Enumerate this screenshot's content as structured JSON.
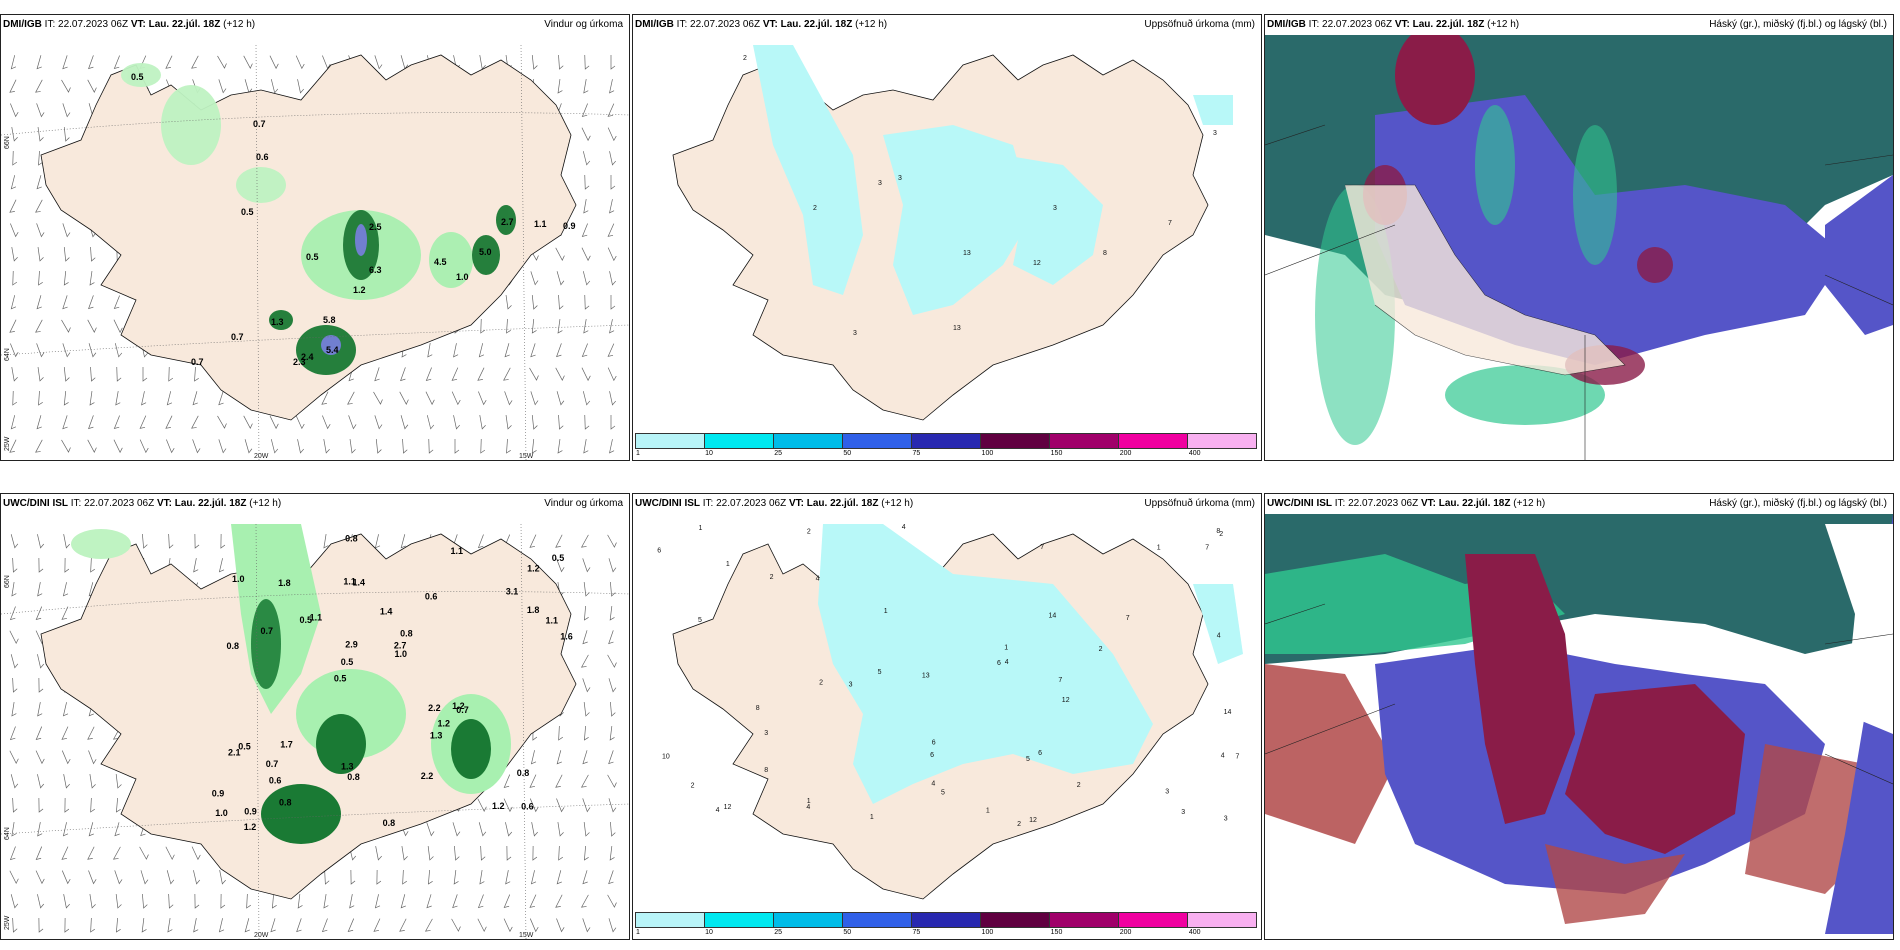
{
  "panels": [
    {
      "model": "DMI/IGB",
      "it": "IT: 22.07.2023 06Z",
      "vt_label": "VT:",
      "vt": "Lau. 22.júl. 18Z",
      "lead": "(+12 h)",
      "title": "Vindur og úrkoma",
      "type": "wind"
    },
    {
      "model": "DMI/IGB",
      "it": "IT: 22.07.2023 06Z",
      "vt_label": "VT:",
      "vt": "Lau. 22.júl. 18Z",
      "lead": "(+12 h)",
      "title": "Uppsöfnuð úrkoma (mm)",
      "type": "accum"
    },
    {
      "model": "DMI/IGB",
      "it": "IT: 22.07.2023 06Z",
      "vt_label": "VT:",
      "vt": "Lau. 22.júl. 18Z",
      "lead": "(+12 h)",
      "title": "Háský (gr.), miðský (fj.bl.) og lágský (bl.)",
      "type": "cloud"
    },
    {
      "model": "UWC/DINI ISL",
      "it": "IT: 22.07.2023 06Z",
      "vt_label": "VT:",
      "vt": "Lau. 22.júl. 18Z",
      "lead": "(+12 h)",
      "title": "Vindur og úrkoma",
      "type": "wind"
    },
    {
      "model": "UWC/DINI ISL",
      "it": "IT: 22.07.2023 06Z",
      "vt_label": "VT:",
      "vt": "Lau. 22.júl. 18Z",
      "lead": "(+12 h)",
      "title": "Uppsöfnuð úrkoma (mm)",
      "type": "accum"
    },
    {
      "model": "UWC/DINI ISL",
      "it": "IT: 22.07.2023 06Z",
      "vt_label": "VT:",
      "vt": "Lau. 22.júl. 18Z",
      "lead": "(+12 h)",
      "title": "Háský (gr.), miðský (fj.bl.) og lágský (bl.)",
      "type": "cloud"
    }
  ],
  "axis_labels": {
    "lat66": "66N",
    "lat64": "64N",
    "lon25": "25W",
    "lon20": "20W",
    "lon15": "15W"
  },
  "colorbar": {
    "ticks": [
      "1",
      "10",
      "25",
      "50",
      "75",
      "100",
      "150",
      "200",
      "400"
    ],
    "colors": [
      "#b8f4f8",
      "#00e8f0",
      "#00bce8",
      "#3060e8",
      "#2828b0",
      "#600040",
      "#a0006a",
      "#f000a0",
      "#f8b0f0"
    ]
  },
  "colors": {
    "land": "#f8e9dc",
    "precip_light": "#a8f0b0",
    "precip_dark": "#0a5a20",
    "accum_light": "#b8f8f8",
    "cloud_high": "#2a6a6a",
    "cloud_mid": "#5555c8",
    "cloud_low": "#8a1c48",
    "cloud_green": "#30c890"
  },
  "precip_labels_top": [
    "0.5",
    "0.7",
    "0.6",
    "0.5",
    "2.5",
    "0.5",
    "6.3",
    "1.2",
    "4.5",
    "1.0",
    "5.0",
    "2.7",
    "1.1",
    "0.9",
    "1.3",
    "5.8",
    "2.4",
    "5.4",
    "2.3",
    "0.7",
    "0.7"
  ],
  "accum_labels_top": [
    "2",
    "3",
    "2",
    "3",
    "13",
    "12",
    "8",
    "7",
    "3",
    "13",
    "3",
    "3"
  ],
  "precip_labels_bottom": [
    "0.6",
    "0.8",
    "1.2",
    "0.5",
    "0.6",
    "0.9",
    "1.1",
    "1.4",
    "0.5",
    "1.1",
    "0.9",
    "0.6",
    "1.4",
    "0.8",
    "0.7",
    "1.0",
    "0.8",
    "1.6",
    "2.2",
    "1.8",
    "0.5",
    "1.3",
    "2.9",
    "1.8",
    "1.1",
    "1.7",
    "1.2",
    "0.8",
    "1.2",
    "0.8",
    "0.5",
    "0.7",
    "1.3",
    "0.8",
    "1.1",
    "2.7",
    "1.0",
    "0.8",
    "1.0",
    "2.1",
    "3.1",
    "0.5",
    "1.2",
    "2.2",
    "0.7",
    "1.2"
  ],
  "accum_labels_bottom": [
    "1",
    "2",
    "1",
    "2",
    "2",
    "1",
    "2",
    "3",
    "4",
    "1",
    "1",
    "5",
    "5",
    "6",
    "7",
    "6",
    "5",
    "4",
    "3",
    "6",
    "5",
    "2",
    "1",
    "4",
    "7",
    "8",
    "10",
    "3",
    "1",
    "12",
    "13",
    "12",
    "6",
    "7",
    "8",
    "7",
    "4",
    "2",
    "14",
    "3",
    "4",
    "2",
    "7",
    "12",
    "4",
    "6",
    "14",
    "1",
    "2",
    "4",
    "8",
    "4",
    "3"
  ]
}
